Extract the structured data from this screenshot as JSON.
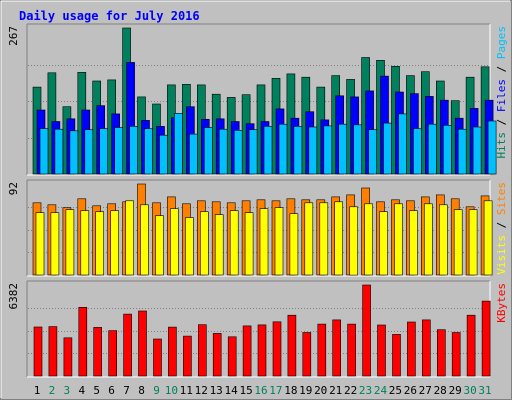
{
  "colors": {
    "background": "#c0c0c0",
    "title": "#0000ff",
    "hits": "#00805c",
    "files": "#0000ff",
    "pages": "#00c0ff",
    "visits": "#ffff00",
    "sites": "#ff8000",
    "kbytes": "#ff0000",
    "weekday": "#000000",
    "weekend": "#00805c"
  },
  "chart_data": {
    "type": "bar",
    "title": "Daily usage for July 2016",
    "categories": [
      "1",
      "2",
      "3",
      "4",
      "5",
      "6",
      "7",
      "8",
      "9",
      "10",
      "11",
      "12",
      "13",
      "14",
      "15",
      "16",
      "17",
      "18",
      "19",
      "20",
      "21",
      "22",
      "23",
      "24",
      "25",
      "26",
      "27",
      "28",
      "29",
      "30",
      "31"
    ],
    "weekend_days": [
      "2",
      "3",
      "9",
      "10",
      "16",
      "17",
      "23",
      "24",
      "30",
      "31"
    ],
    "panels": [
      {
        "id": "hits-panel",
        "max_label": "267",
        "ylim": [
          0,
          267
        ],
        "legend": [
          {
            "text": "Hits",
            "color": "#00805c"
          },
          {
            "text": " / ",
            "color": "#000000"
          },
          {
            "text": "Files",
            "color": "#0000ff"
          },
          {
            "text": " / ",
            "color": "#000000"
          },
          {
            "text": "Pages",
            "color": "#00c0ff"
          }
        ],
        "series": [
          {
            "name": "Hits",
            "color": "#00805c",
            "values": [
              159,
              185,
              123,
              186,
              170,
              172,
              267,
              141,
              128,
              163,
              164,
              163,
              146,
              140,
              145,
              163,
              175,
              183,
              177,
              159,
              180,
              173,
              213,
              208,
              197,
              180,
              187,
              170,
              134,
              177,
              196
            ]
          },
          {
            "name": "Files",
            "color": "#0000ff",
            "values": [
              117,
              96,
              101,
              117,
              125,
              110,
              204,
              98,
              87,
              103,
              123,
              100,
              101,
              96,
              92,
              96,
              119,
              102,
              114,
              99,
              143,
              141,
              152,
              179,
              150,
              147,
              142,
              135,
              102,
              120,
              135
            ]
          },
          {
            "name": "Pages",
            "color": "#00c0ff",
            "values": [
              83,
              82,
              79,
              81,
              83,
              85,
              87,
              83,
              71,
              111,
              73,
              85,
              82,
              80,
              81,
              87,
              91,
              87,
              86,
              88,
              91,
              90,
              81,
              93,
              110,
              83,
              91,
              89,
              82,
              86,
              97
            ]
          }
        ]
      },
      {
        "id": "visits-panel",
        "max_label": "92",
        "ylim": [
          0,
          92
        ],
        "legend": [
          {
            "text": "Visits",
            "color": "#ffff00"
          },
          {
            "text": " / ",
            "color": "#000000"
          },
          {
            "text": "Sites",
            "color": "#ff8000"
          }
        ],
        "series": [
          {
            "name": "Sites",
            "color": "#ff8000",
            "values": [
              73,
              71,
              68,
              77,
              70,
              72,
              74,
              92,
              73,
              79,
              72,
              75,
              74,
              73,
              75,
              76,
              75,
              77,
              76,
              76,
              79,
              81,
              88,
              74,
              76,
              75,
              79,
              81,
              77,
              69,
              80
            ]
          },
          {
            "name": "Visits",
            "color": "#ffff00",
            "values": [
              63,
              63,
              66,
              65,
              64,
              65,
              75,
              71,
              60,
              67,
              58,
              64,
              61,
              65,
              63,
              67,
              68,
              62,
              73,
              73,
              74,
              69,
              72,
              64,
              72,
              65,
              72,
              71,
              66,
              66,
              75
            ]
          }
        ]
      },
      {
        "id": "kbytes-panel",
        "max_label": "6382",
        "ylim": [
          0,
          6382
        ],
        "legend": [
          {
            "text": "KBytes",
            "color": "#ff0000"
          }
        ],
        "series": [
          {
            "name": "KBytes",
            "color": "#ff0000",
            "values": [
              3434,
              3464,
              2678,
              4816,
              3410,
              3183,
              4343,
              4562,
              2595,
              3426,
              2797,
              3601,
              2988,
              2751,
              3511,
              3585,
              3799,
              4262,
              3049,
              3640,
              3936,
              3640,
              6382,
              3579,
              2919,
              3790,
              3933,
              3244,
              3052,
              4262,
              5250
            ]
          }
        ]
      }
    ]
  }
}
